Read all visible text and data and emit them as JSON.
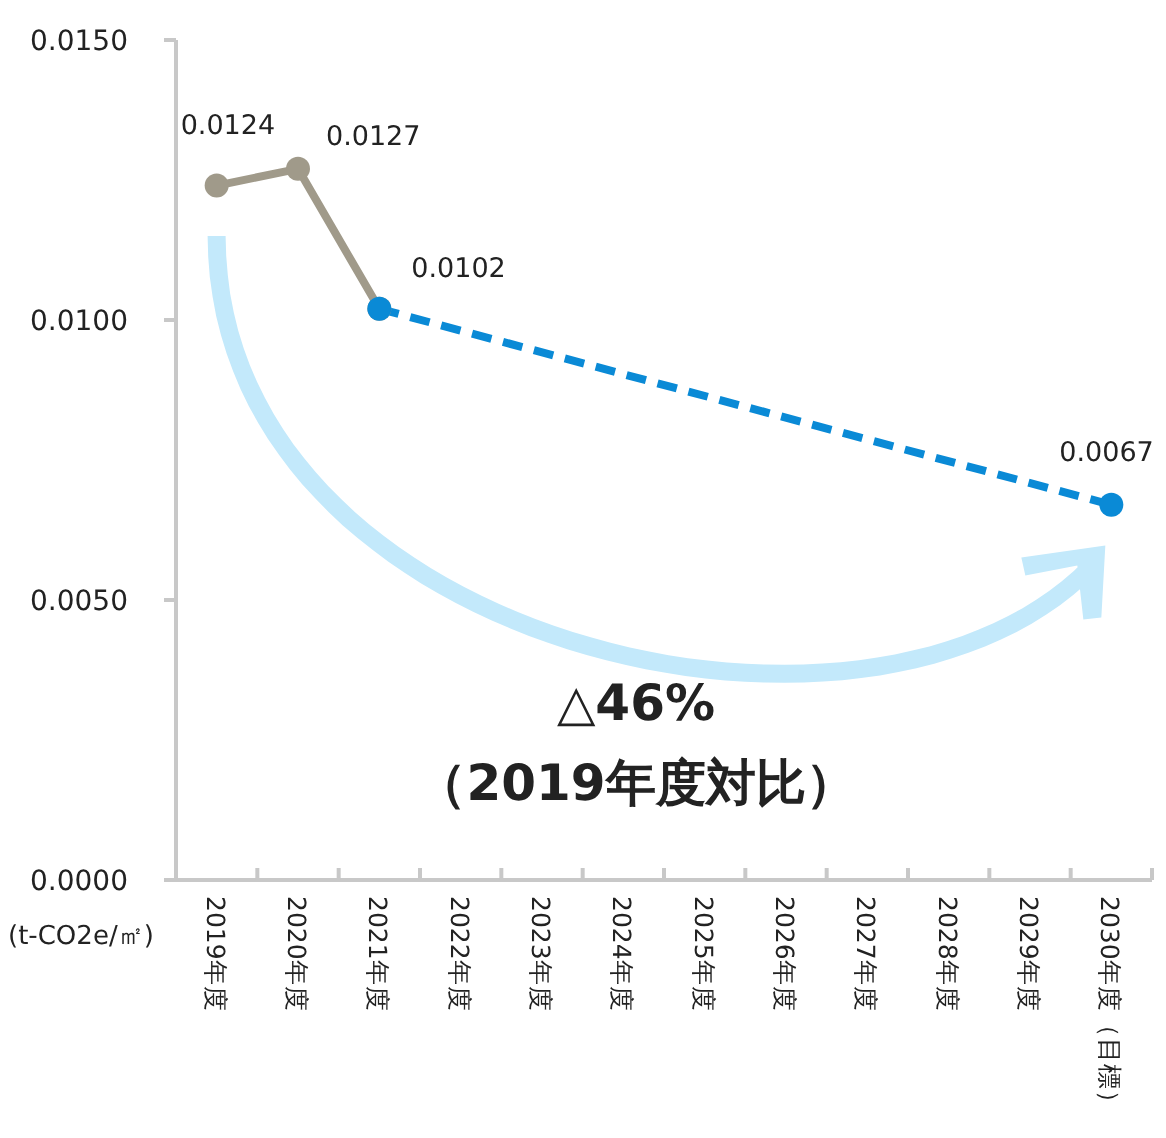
{
  "chart_data": {
    "type": "line",
    "ylabel": "(t-CO2e/㎡)",
    "categories": [
      "2019年度",
      "2020年度",
      "2021年度",
      "2022年度",
      "2023年度",
      "2024年度",
      "2025年度",
      "2026年度",
      "2027年度",
      "2028年度",
      "2029年度",
      "2030年度（目標）"
    ],
    "series": [
      {
        "color": "#a09a8a",
        "line_style": "solid",
        "values": [
          0.0124,
          0.0127,
          0.0102,
          null,
          null,
          null,
          null,
          null,
          null,
          null,
          null,
          null
        ],
        "value_labels": [
          "0.0124",
          "0.0127",
          null,
          null,
          null,
          null,
          null,
          null,
          null,
          null,
          null,
          null
        ]
      },
      {
        "color": "#0a8ad6",
        "line_style": "dashed",
        "values": [
          null,
          null,
          0.0102,
          null,
          null,
          null,
          null,
          null,
          null,
          null,
          null,
          0.0067
        ],
        "value_labels": [
          null,
          null,
          "0.0102",
          null,
          null,
          null,
          null,
          null,
          null,
          null,
          null,
          "0.0067"
        ]
      }
    ],
    "ylim": [
      0,
      0.015
    ],
    "yticks": [
      {
        "value": 0,
        "label": "0.0000"
      },
      {
        "value": 0.005,
        "label": "0.0050"
      },
      {
        "value": 0.01,
        "label": "0.0100"
      },
      {
        "value": 0.015,
        "label": "0.0150"
      }
    ],
    "marker": "circle",
    "grid": false,
    "annotations": [
      "△46%",
      "（2019年度対比）"
    ]
  }
}
